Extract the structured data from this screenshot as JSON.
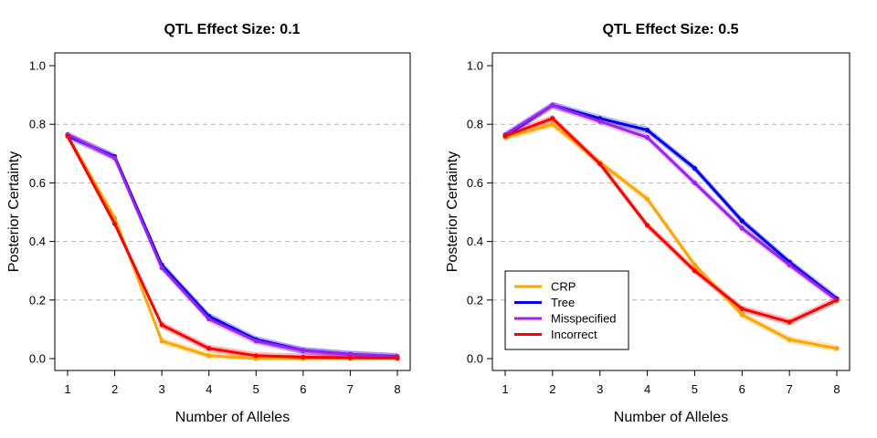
{
  "chart_data": [
    {
      "type": "line",
      "title": "QTL Effect Size: 0.1",
      "xlabel": "Number of Alleles",
      "ylabel": "Posterior Certainty",
      "x": [
        1,
        2,
        3,
        4,
        5,
        6,
        7,
        8
      ],
      "xlim": [
        1,
        8
      ],
      "ylim": [
        0,
        1
      ],
      "yticks": [
        0.0,
        0.2,
        0.4,
        0.6,
        0.8,
        1.0
      ],
      "ytick_labels": [
        "0.0",
        "0.2",
        "0.4",
        "0.6",
        "0.8",
        "1.0"
      ],
      "xtick_labels": [
        "1",
        "2",
        "3",
        "4",
        "5",
        "6",
        "7",
        "8"
      ],
      "grid": "horizontal dashed",
      "legend": null,
      "series": [
        {
          "name": "CRP",
          "color": "#FFA500",
          "values": [
            0.76,
            0.48,
            0.06,
            0.01,
            0.0,
            0.0,
            0.0,
            0.0
          ]
        },
        {
          "name": "Tree",
          "color": "#0000EE",
          "values": [
            0.76,
            0.69,
            0.32,
            0.145,
            0.065,
            0.028,
            0.015,
            0.007
          ]
        },
        {
          "name": "Misspecified",
          "color": "#A020F0",
          "values": [
            0.765,
            0.685,
            0.31,
            0.135,
            0.06,
            0.027,
            0.014,
            0.006
          ]
        },
        {
          "name": "Incorrect",
          "color": "#FF0000",
          "values": [
            0.76,
            0.46,
            0.115,
            0.035,
            0.01,
            0.005,
            0.003,
            0.002
          ]
        }
      ]
    },
    {
      "type": "line",
      "title": "QTL Effect Size: 0.5",
      "xlabel": "Number of Alleles",
      "ylabel": "Posterior Certainty",
      "x": [
        1,
        2,
        3,
        4,
        5,
        6,
        7,
        8
      ],
      "xlim": [
        1,
        8
      ],
      "ylim": [
        0,
        1
      ],
      "yticks": [
        0.0,
        0.2,
        0.4,
        0.6,
        0.8,
        1.0
      ],
      "ytick_labels": [
        "0.0",
        "0.2",
        "0.4",
        "0.6",
        "0.8",
        "1.0"
      ],
      "xtick_labels": [
        "1",
        "2",
        "3",
        "4",
        "5",
        "6",
        "7",
        "8"
      ],
      "grid": "horizontal dashed",
      "legend": "bottom-left",
      "series": [
        {
          "name": "CRP",
          "color": "#FFA500",
          "values": [
            0.755,
            0.8,
            0.67,
            0.545,
            0.32,
            0.15,
            0.065,
            0.035
          ]
        },
        {
          "name": "Tree",
          "color": "#0000EE",
          "values": [
            0.76,
            0.865,
            0.82,
            0.78,
            0.65,
            0.47,
            0.33,
            0.205
          ]
        },
        {
          "name": "Misspecified",
          "color": "#A020F0",
          "values": [
            0.765,
            0.865,
            0.81,
            0.755,
            0.6,
            0.445,
            0.32,
            0.2
          ]
        },
        {
          "name": "Incorrect",
          "color": "#FF0000",
          "values": [
            0.76,
            0.82,
            0.665,
            0.455,
            0.3,
            0.17,
            0.125,
            0.2
          ]
        }
      ]
    }
  ]
}
